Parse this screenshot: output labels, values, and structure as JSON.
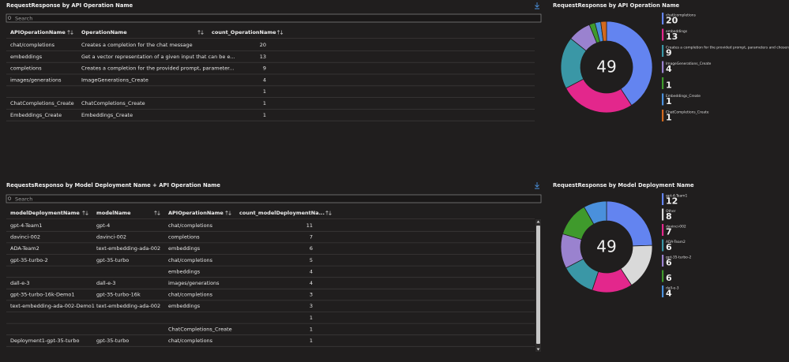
{
  "tables": [
    {
      "title": "RequestResponse by API Operation Name",
      "search_placeholder": "Search",
      "columns": [
        "APIOperationName",
        "OperationName",
        "count_OperationName"
      ],
      "rows": [
        [
          "chat/completions",
          "Creates a completion for the chat message",
          20
        ],
        [
          "embeddings",
          "Get a vector representation of a given input that can be e...",
          13
        ],
        [
          "completions",
          "Creates a completion for the provided prompt, parameter...",
          9
        ],
        [
          "images/generations",
          "ImageGenerations_Create",
          4
        ],
        [
          null,
          null,
          1
        ],
        [
          "ChatCompletions_Create",
          "ChatCompletions_Create",
          1
        ],
        [
          "Embeddings_Create",
          "Embeddings_Create",
          1
        ]
      ]
    },
    {
      "title": "RequestsResponso by Model Deployment Name + API Operation Name",
      "search_placeholder": "Search",
      "columns": [
        "modelDeploymentName",
        "modelName",
        "APIOperationName",
        "count_modelDeploymentNa..."
      ],
      "rows": [
        [
          "gpt-4-Team1",
          "gpt-4",
          "chat/completions",
          11
        ],
        [
          "davinci-002",
          "davinci-002",
          "completions",
          7
        ],
        [
          "ADA-Team2",
          "text-embedding-ada-002",
          "embeddings",
          6
        ],
        [
          "gpt-35-turbo-2",
          "gpt-35-turbo",
          "chat/completions",
          5
        ],
        [
          null,
          null,
          "embeddings",
          4
        ],
        [
          "dall-e-3",
          "dall-e-3",
          "images/generations",
          4
        ],
        [
          "gpt-35-turbo-16k-Demo1",
          "gpt-35-turbo-16k",
          "chat/completions",
          3
        ],
        [
          "text-embedding-ada-002-Demo1",
          "text-embedding-ada-002",
          "embeddings",
          3
        ],
        [
          null,
          null,
          null,
          1
        ],
        [
          null,
          null,
          "ChatCompletions_Create",
          1
        ],
        [
          "Deployment1-gpt-35-turbo",
          "gpt-35-turbo",
          "chat/completions",
          1
        ]
      ]
    }
  ],
  "chart_data": [
    {
      "type": "donut",
      "title": "RequestResponse by API Operation Name",
      "total": 49,
      "categories": [
        "chat/completions",
        "embeddings",
        "Creates a completion for the provided prompt, parameters and chosen m...",
        "ImageGenerations_Create",
        null,
        "Embeddings_Create",
        "ChatCompletions_Create"
      ],
      "values": [
        20,
        13,
        9,
        4,
        1,
        1,
        1
      ],
      "colors": [
        "#6384f0",
        "#e3278c",
        "#3a97a6",
        "#9a82cf",
        "#3f9a2c",
        "#4a90dc",
        "#d2691e"
      ]
    },
    {
      "type": "donut",
      "title": "RequestResponse by Model Deployment Name",
      "total": 49,
      "categories": [
        "gpt-4-Team1",
        "Other",
        "davinci-002",
        "ADA-Team2",
        "gpt-35-turbo-2",
        null,
        "dall-e-3"
      ],
      "values": [
        12,
        8,
        7,
        6,
        6,
        6,
        4
      ],
      "colors": [
        "#6384f0",
        "#d9d9d9",
        "#e3278c",
        "#3a97a6",
        "#9a82cf",
        "#3f9a2c",
        "#4a90dc"
      ]
    }
  ]
}
